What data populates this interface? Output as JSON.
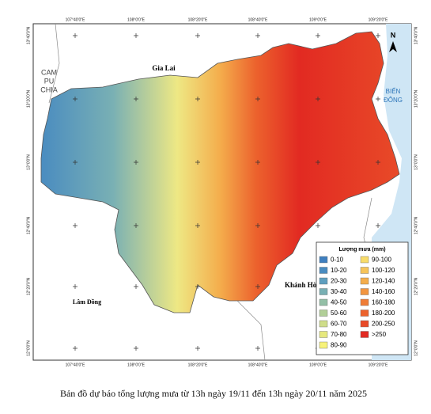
{
  "map": {
    "top_ticks": [
      "107°40'0\"E",
      "108°0'0\"E",
      "108°20'0\"E",
      "108°40'0\"E",
      "109°0'0\"E",
      "109°20'0\"E"
    ],
    "left_ticks": [
      "13°40'0\"N",
      "13°20'0\"N",
      "13°0'0\"N",
      "12°40'0\"N",
      "12°20'0\"N",
      "12°0'0\"N"
    ],
    "cambodia": [
      "CAM",
      "PU",
      "CHIA"
    ],
    "gia_lai": "Gia Lai",
    "sea": [
      "BIỂN",
      "ĐÔNG"
    ],
    "khanh_hoa": "Khánh Hòa",
    "lam_dong": "Lâm Đồng",
    "north": "N",
    "legend": {
      "title": "Lượng mưa (mm)",
      "items": [
        {
          "label": "0-10",
          "color": "#3f7fbf"
        },
        {
          "label": "10-20",
          "color": "#4a8cc0"
        },
        {
          "label": "20-30",
          "color": "#5f9fbf"
        },
        {
          "label": "30-40",
          "color": "#79b0b4"
        },
        {
          "label": "40-50",
          "color": "#93bfa6"
        },
        {
          "label": "50-60",
          "color": "#b1cf98"
        },
        {
          "label": "60-70",
          "color": "#cfdd8a"
        },
        {
          "label": "70-80",
          "color": "#e6e87e"
        },
        {
          "label": "80-90",
          "color": "#f7f27a"
        },
        {
          "label": "90-100",
          "color": "#f8dc6a"
        },
        {
          "label": "100-120",
          "color": "#f6c45a"
        },
        {
          "label": "120-140",
          "color": "#f4ad4c"
        },
        {
          "label": "140-160",
          "color": "#f29540"
        },
        {
          "label": "160-180",
          "color": "#ef7c36"
        },
        {
          "label": "180-200",
          "color": "#ec622d"
        },
        {
          "label": "200-250",
          "color": "#e84a28"
        },
        {
          "label": ">250",
          "color": "#e22a22"
        }
      ]
    },
    "caption": "Bản đồ dự báo tổng lượng mưa từ 13h ngày 19/11 đến 13h ngày 20/11 năm 2025"
  }
}
